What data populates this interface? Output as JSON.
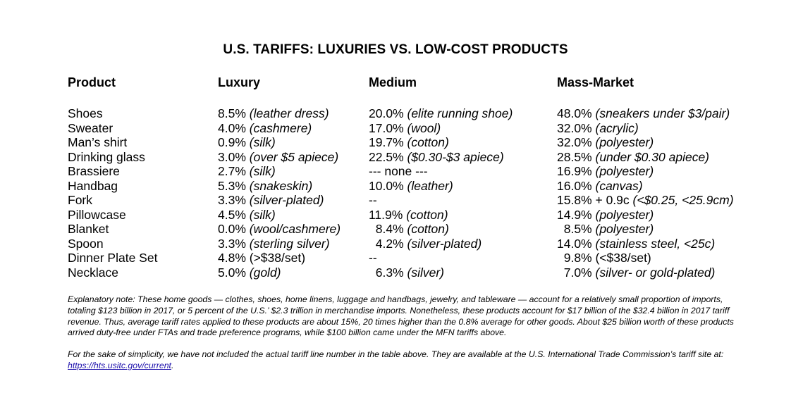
{
  "title": "U.S. TARIFFS:  LUXURIES VS. LOW-COST PRODUCTS",
  "headers": {
    "product": "Product",
    "luxury": "Luxury",
    "medium": "Medium",
    "mass": "Mass-Market"
  },
  "rows": [
    {
      "product": "Shoes",
      "lux_rate": "8.5%",
      "lux_desc": "(leather dress)",
      "med_rate": "20.0%",
      "med_desc": "(elite running shoe)",
      "mass_rate": "48.0%",
      "mass_desc": "(sneakers under $3/pair)"
    },
    {
      "product": "Sweater",
      "lux_rate": "4.0%",
      "lux_desc": "(cashmere)",
      "med_rate": "17.0%",
      "med_desc": "(wool)",
      "mass_rate": "32.0%",
      "mass_desc": "(acrylic)"
    },
    {
      "product": "Man’s shirt",
      "lux_rate": "0.9%",
      "lux_desc": "(silk)",
      "med_rate": "19.7%",
      "med_desc": "(cotton)",
      "mass_rate": "32.0%",
      "mass_desc": "(polyester)"
    },
    {
      "product": "Drinking glass",
      "lux_rate": "3.0%",
      "lux_desc": "(over $5 apiece)",
      "med_rate": "22.5%",
      "med_desc": "($0.30-$3 apiece)",
      "mass_rate": "28.5%",
      "mass_desc": "(under $0.30 apiece)"
    },
    {
      "product": "Brassiere",
      "lux_rate": "2.7%",
      "lux_desc": "(silk)",
      "med_rate": "--- none ---",
      "med_desc": "",
      "mass_rate": "16.9%",
      "mass_desc": "(polyester)"
    },
    {
      "product": "Handbag",
      "lux_rate": "5.3%",
      "lux_desc": "(snakeskin)",
      "med_rate": "10.0%",
      "med_desc": "(leather)",
      "mass_rate": "16.0%",
      "mass_desc": "(canvas)"
    },
    {
      "product": "Fork",
      "lux_rate": "3.3%",
      "lux_desc": "(silver-plated)",
      "med_rate": "--",
      "med_desc": "",
      "mass_rate": "15.8% + 0.9c",
      "mass_desc": "(<$0.25, <25.9cm)"
    },
    {
      "product": "Pillowcase",
      "lux_rate": "4.5%",
      "lux_desc": "(silk)",
      "med_rate": "11.9%",
      "med_desc": "(cotton)",
      "mass_rate": "14.9%",
      "mass_desc": "(polyester)"
    },
    {
      "product": "Blanket",
      "lux_rate": "0.0%",
      "lux_desc": "(wool/cashmere)",
      "med_rate": "  8.4%",
      "med_desc": "(cotton)",
      "mass_rate": "  8.5%",
      "mass_desc": "(polyester)"
    },
    {
      "product": "Spoon",
      "lux_rate": "3.3%",
      "lux_desc": "(sterling silver)",
      "med_rate": "  4.2%",
      "med_desc": "(silver-plated)",
      "mass_rate": "14.0%",
      "mass_desc": "(stainless steel, <25c)"
    },
    {
      "product": "Dinner Plate Set",
      "lux_rate": "4.8% (>$38/set)",
      "lux_desc": "",
      "med_rate": "--",
      "med_desc": "",
      "mass_rate": "  9.8% (<$38/set)",
      "mass_desc": ""
    },
    {
      "product": "Necklace",
      "lux_rate": "5.0%",
      "lux_desc": "(gold)",
      "med_rate": "  6.3%",
      "med_desc": "(silver)",
      "mass_rate": "  7.0%",
      "mass_desc": "(silver- or gold-plated)"
    }
  ],
  "note1": "Explanatory note: These home goods — clothes, shoes, home linens, luggage and handbags, jewelry, and tableware — account for a relatively small proportion of imports, totaling $123 billion in 2017, or 5 percent of the U.S.’ $2.3 trillion in merchandise imports.  Nonetheless, these products account for $17 billion of the $32.4 billion in 2017 tariff revenue. Thus, average tariff rates applied to these products are about 15%, 20 times higher than the 0.8% average for other goods. About $25 billion worth of these products arrived duty-free under FTAs and trade preference programs, while $100 billion came under the MFN tariffs above.",
  "note2_text": "For the sake of simplicity, we have not included the actual tariff line number in the table above. They are available at the U.S. International Trade Commission’s tariff site at: ",
  "note2_link": "https://hts.usitc.gov/current",
  "note2_end": "."
}
